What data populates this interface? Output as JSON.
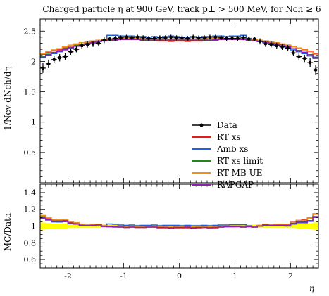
{
  "chart_data": {
    "type": "line",
    "title": "Charged particle η at 900 GeV, track p⊥ > 500 MeV, for Nch ≥ 6",
    "xlabel": "η",
    "ylabel": "1/Nev dNch/dη",
    "ratio_ylabel": "MC/Data",
    "xlim": [
      -2.5,
      2.5
    ],
    "ylim": [
      0,
      2.7
    ],
    "ratio_ylim": [
      0.5,
      1.5
    ],
    "x_ticks": [
      "-2",
      "-1",
      "0",
      "1",
      "2"
    ],
    "y_ticks": [
      "0.5",
      "1",
      "1.5",
      "2",
      "2.5"
    ],
    "ratio_y_ticks": [
      "0.6",
      "0.8",
      "1",
      "1.2",
      "1.4"
    ],
    "legend": [
      "Data",
      "RT xs",
      "Amb xs",
      "RT xs limit",
      "RT MB UE",
      "RAPGAP"
    ],
    "legend_placement": "center-right",
    "bin_edges": [
      -2.5,
      -2.4,
      -2.3,
      -2.2,
      -2.1,
      -2.0,
      -1.9,
      -1.8,
      -1.7,
      -1.6,
      -1.5,
      -1.4,
      -1.3,
      -1.2,
      -1.1,
      -1.0,
      -0.9,
      -0.8,
      -0.7,
      -0.6,
      -0.5,
      -0.4,
      -0.3,
      -0.2,
      -0.1,
      0.0,
      0.1,
      0.2,
      0.3,
      0.4,
      0.5,
      0.6,
      0.7,
      0.8,
      0.9,
      1.0,
      1.1,
      1.2,
      1.3,
      1.4,
      1.5,
      1.6,
      1.7,
      1.8,
      1.9,
      2.0,
      2.1,
      2.2,
      2.3,
      2.4,
      2.5
    ],
    "data": {
      "name": "Data",
      "color": "#000000",
      "x": [
        -2.45,
        -2.35,
        -2.25,
        -2.15,
        -2.05,
        -1.95,
        -1.85,
        -1.75,
        -1.65,
        -1.55,
        -1.45,
        -1.35,
        -1.25,
        -1.15,
        -1.05,
        -0.95,
        -0.85,
        -0.75,
        -0.65,
        -0.55,
        -0.45,
        -0.35,
        -0.25,
        -0.15,
        -0.05,
        0.05,
        0.15,
        0.25,
        0.35,
        0.45,
        0.55,
        0.65,
        0.75,
        0.85,
        0.95,
        1.05,
        1.15,
        1.25,
        1.35,
        1.45,
        1.55,
        1.65,
        1.75,
        1.85,
        1.95,
        2.05,
        2.15,
        2.25,
        2.35,
        2.45
      ],
      "y": [
        1.89,
        1.96,
        2.03,
        2.06,
        2.08,
        2.16,
        2.2,
        2.26,
        2.28,
        2.29,
        2.3,
        2.35,
        2.37,
        2.38,
        2.39,
        2.4,
        2.39,
        2.4,
        2.39,
        2.38,
        2.38,
        2.39,
        2.39,
        2.4,
        2.39,
        2.39,
        2.38,
        2.4,
        2.39,
        2.39,
        2.4,
        2.4,
        2.39,
        2.38,
        2.38,
        2.38,
        2.39,
        2.37,
        2.37,
        2.33,
        2.29,
        2.28,
        2.26,
        2.24,
        2.22,
        2.14,
        2.08,
        2.05,
        1.98,
        1.86
      ],
      "yerr": [
        0.08,
        0.07,
        0.06,
        0.06,
        0.06,
        0.05,
        0.05,
        0.05,
        0.05,
        0.05,
        0.05,
        0.05,
        0.04,
        0.04,
        0.04,
        0.04,
        0.04,
        0.04,
        0.04,
        0.04,
        0.04,
        0.04,
        0.04,
        0.04,
        0.04,
        0.04,
        0.04,
        0.04,
        0.04,
        0.04,
        0.04,
        0.04,
        0.04,
        0.04,
        0.04,
        0.04,
        0.04,
        0.04,
        0.04,
        0.05,
        0.05,
        0.05,
        0.05,
        0.05,
        0.05,
        0.05,
        0.06,
        0.06,
        0.07,
        0.08
      ]
    },
    "series": [
      {
        "name": "RT xs",
        "color": "#e41a1c",
        "values": [
          2.12,
          2.15,
          2.18,
          2.2,
          2.22,
          2.25,
          2.27,
          2.28,
          2.3,
          2.31,
          2.33,
          2.34,
          2.35,
          2.35,
          2.36,
          2.36,
          2.36,
          2.36,
          2.35,
          2.35,
          2.35,
          2.34,
          2.34,
          2.33,
          2.34,
          2.34,
          2.33,
          2.34,
          2.34,
          2.35,
          2.35,
          2.35,
          2.36,
          2.36,
          2.36,
          2.37,
          2.36,
          2.36,
          2.35,
          2.34,
          2.33,
          2.31,
          2.3,
          2.28,
          2.27,
          2.25,
          2.22,
          2.2,
          2.17,
          2.13
        ]
      },
      {
        "name": "Amb xs",
        "color": "#1f5fe0",
        "values": [
          2.06,
          2.1,
          2.13,
          2.16,
          2.19,
          2.22,
          2.25,
          2.27,
          2.29,
          2.31,
          2.33,
          2.36,
          2.43,
          2.43,
          2.42,
          2.42,
          2.42,
          2.41,
          2.41,
          2.4,
          2.41,
          2.4,
          2.41,
          2.42,
          2.41,
          2.4,
          2.4,
          2.41,
          2.4,
          2.41,
          2.41,
          2.42,
          2.42,
          2.41,
          2.42,
          2.42,
          2.43,
          2.38,
          2.36,
          2.33,
          2.31,
          2.29,
          2.27,
          2.25,
          2.22,
          2.19,
          2.16,
          2.13,
          2.09,
          2.05
        ]
      },
      {
        "name": "RT xs limit",
        "color": "#1a8a1a",
        "values": [
          2.08,
          2.12,
          2.15,
          2.18,
          2.21,
          2.23,
          2.26,
          2.28,
          2.3,
          2.32,
          2.33,
          2.34,
          2.36,
          2.37,
          2.37,
          2.37,
          2.37,
          2.37,
          2.36,
          2.36,
          2.36,
          2.36,
          2.37,
          2.36,
          2.36,
          2.36,
          2.36,
          2.37,
          2.36,
          2.36,
          2.37,
          2.37,
          2.37,
          2.37,
          2.37,
          2.37,
          2.37,
          2.36,
          2.34,
          2.33,
          2.32,
          2.3,
          2.28,
          2.26,
          2.24,
          2.21,
          2.18,
          2.15,
          2.11,
          2.07
        ]
      },
      {
        "name": "RT MB UE",
        "color": "#f0901c",
        "values": [
          2.13,
          2.16,
          2.19,
          2.21,
          2.24,
          2.27,
          2.29,
          2.31,
          2.32,
          2.34,
          2.35,
          2.36,
          2.37,
          2.38,
          2.38,
          2.38,
          2.38,
          2.38,
          2.37,
          2.37,
          2.37,
          2.37,
          2.37,
          2.37,
          2.37,
          2.37,
          2.37,
          2.37,
          2.37,
          2.37,
          2.38,
          2.38,
          2.38,
          2.38,
          2.38,
          2.38,
          2.37,
          2.37,
          2.36,
          2.35,
          2.34,
          2.32,
          2.31,
          2.29,
          2.27,
          2.24,
          2.22,
          2.19,
          2.16,
          2.12
        ]
      },
      {
        "name": "RAPGAP",
        "color": "#8e1fb0",
        "values": [
          2.07,
          2.11,
          2.14,
          2.17,
          2.2,
          2.23,
          2.25,
          2.27,
          2.29,
          2.31,
          2.33,
          2.34,
          2.35,
          2.36,
          2.36,
          2.36,
          2.36,
          2.36,
          2.35,
          2.35,
          2.35,
          2.35,
          2.35,
          2.35,
          2.35,
          2.35,
          2.35,
          2.35,
          2.35,
          2.35,
          2.35,
          2.36,
          2.36,
          2.36,
          2.36,
          2.36,
          2.36,
          2.35,
          2.34,
          2.33,
          2.32,
          2.3,
          2.28,
          2.26,
          2.24,
          2.21,
          2.18,
          2.15,
          2.11,
          2.07
        ]
      }
    ],
    "ratio_band_color": "#ffff00"
  }
}
